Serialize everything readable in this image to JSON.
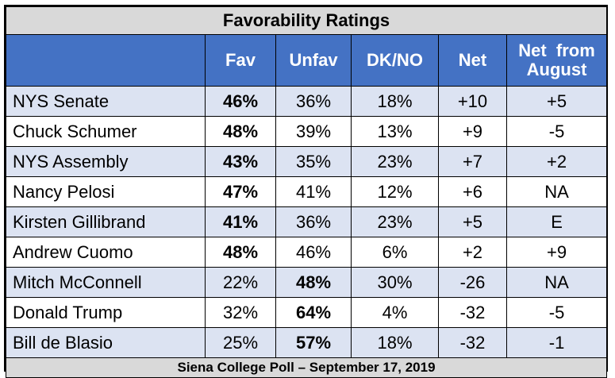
{
  "chart_data": {
    "type": "table",
    "title": "Favorability Ratings",
    "columns": [
      "",
      "Fav",
      "Unfav",
      "DK/NO",
      "Net",
      "Net  from August"
    ],
    "rows": [
      {
        "name": "NYS Senate",
        "fav": "46%",
        "unfav": "36%",
        "dkno": "18%",
        "net": "+10",
        "net_aug": "+5",
        "bold": "fav",
        "net_neg": false,
        "aug_neg": false
      },
      {
        "name": "Chuck Schumer",
        "fav": "48%",
        "unfav": "39%",
        "dkno": "13%",
        "net": "+9",
        "net_aug": "-5",
        "bold": "fav",
        "net_neg": false,
        "aug_neg": true
      },
      {
        "name": "NYS Assembly",
        "fav": "43%",
        "unfav": "35%",
        "dkno": "23%",
        "net": "+7",
        "net_aug": "+2",
        "bold": "fav",
        "net_neg": false,
        "aug_neg": false
      },
      {
        "name": "Nancy Pelosi",
        "fav": "47%",
        "unfav": "41%",
        "dkno": "12%",
        "net": "+6",
        "net_aug": "NA",
        "bold": "fav",
        "net_neg": false,
        "aug_neg": false
      },
      {
        "name": "Kirsten Gillibrand",
        "fav": "41%",
        "unfav": "36%",
        "dkno": "23%",
        "net": "+5",
        "net_aug": "E",
        "bold": "fav",
        "net_neg": false,
        "aug_neg": false
      },
      {
        "name": "Andrew Cuomo",
        "fav": "48%",
        "unfav": "46%",
        "dkno": "6%",
        "net": "+2",
        "net_aug": "+9",
        "bold": "fav",
        "net_neg": false,
        "aug_neg": false
      },
      {
        "name": "Mitch McConnell",
        "fav": "22%",
        "unfav": "48%",
        "dkno": "30%",
        "net": "-26",
        "net_aug": "NA",
        "bold": "unfav",
        "net_neg": true,
        "aug_neg": false
      },
      {
        "name": "Donald Trump",
        "fav": "32%",
        "unfav": "64%",
        "dkno": "4%",
        "net": "-32",
        "net_aug": "-5",
        "bold": "unfav",
        "net_neg": true,
        "aug_neg": true
      },
      {
        "name": "Bill de Blasio",
        "fav": "25%",
        "unfav": "57%",
        "dkno": "18%",
        "net": "-32",
        "net_aug": "-1",
        "bold": "unfav",
        "net_neg": true,
        "aug_neg": true
      }
    ],
    "footer": "Siena College Poll – September 17, 2019",
    "colors": {
      "header_bg": "#4472c4",
      "band_bg": "#dce3f2",
      "title_bg": "#d9d9d9",
      "negative": "#ff0000"
    }
  }
}
